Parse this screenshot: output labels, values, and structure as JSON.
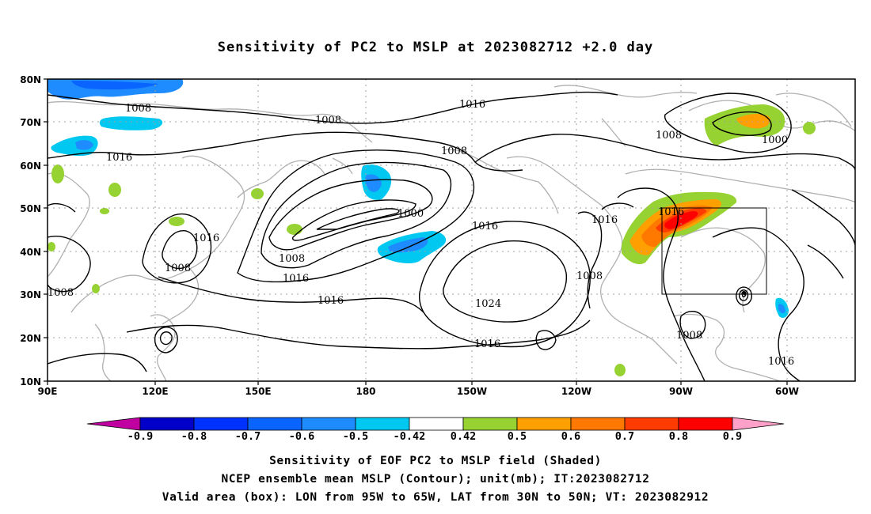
{
  "title": "Sensitivity of PC2 to MSLP at 2023082712 +2.0 day",
  "map": {
    "lat_labels": [
      "80N",
      "70N",
      "60N",
      "50N",
      "40N",
      "30N",
      "20N",
      "10N"
    ],
    "lon_labels": [
      "90E",
      "120E",
      "150E",
      "180",
      "150W",
      "120W",
      "90W",
      "60W"
    ],
    "contour_labels": [
      "1008",
      "1016",
      "1008",
      "1008",
      "1016",
      "1000",
      "1016",
      "1016",
      "1008",
      "1008",
      "1016",
      "1008",
      "1024",
      "1016",
      "1008",
      "1016",
      "1008",
      "1000",
      "1016",
      "1008",
      "1016",
      "1016"
    ],
    "box": {
      "lon_min": "95W",
      "lon_max": "65W",
      "lat_min": "30N",
      "lat_max": "50N"
    },
    "colors": {
      "land": "#b0b0b0",
      "contour": "#000000",
      "grid": "#a0a0a0"
    }
  },
  "colorbar": {
    "labels": [
      "-0.9",
      "-0.8",
      "-0.7",
      "-0.6",
      "-0.5",
      "-0.42",
      "0.42",
      "0.5",
      "0.6",
      "0.7",
      "0.8",
      "0.9"
    ],
    "colors": [
      "#c000a0",
      "#0000c8",
      "#0032ff",
      "#0a64ff",
      "#1e8cff",
      "#00c8f0",
      "#ffffff",
      "#96d232",
      "#ffa000",
      "#ff7800",
      "#ff3c00",
      "#ff0000",
      "#ffa0c8"
    ]
  },
  "captions": {
    "line1": "Sensitivity of EOF PC2 to MSLP field (Shaded)",
    "line2": "NCEP ensemble mean MSLP (Contour); unit(mb); IT:2023082712",
    "line3": "Valid area (box): LON from 95W to 65W, LAT from 30N to 50N; VT: 2023082912"
  }
}
